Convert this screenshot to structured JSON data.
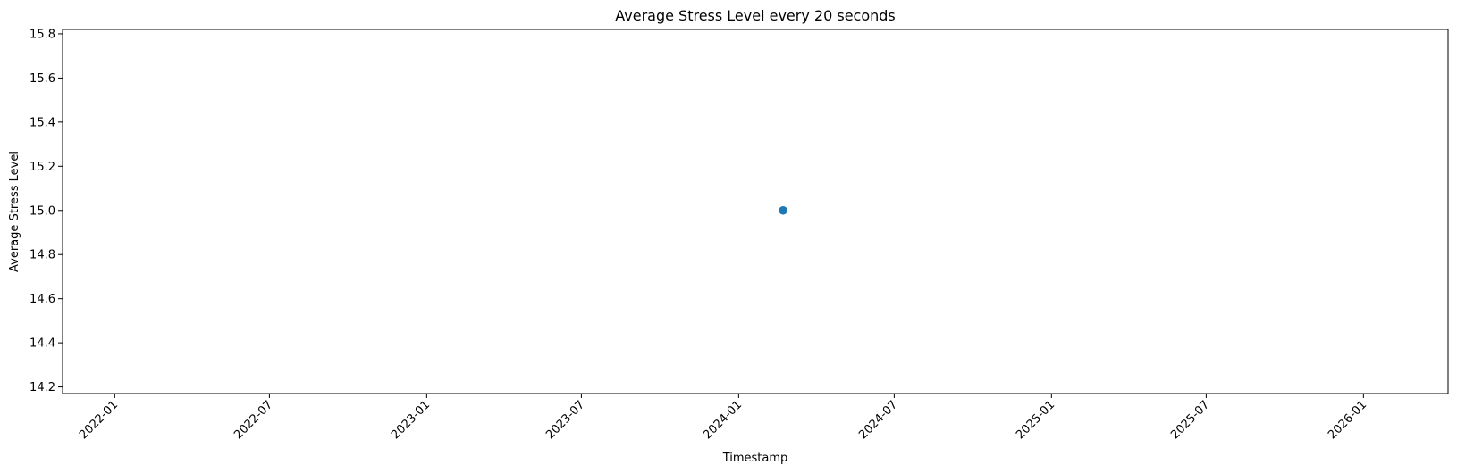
{
  "chart_data": {
    "type": "scatter",
    "title": "Average Stress Level every 20 seconds",
    "xlabel": "Timestamp",
    "ylabel": "Average Stress Level",
    "x_axis_type": "date",
    "xlim": [
      "2021-11-01",
      "2026-04-10"
    ],
    "ylim": [
      14.17,
      15.82
    ],
    "x_ticks": [
      "2022-01",
      "2022-07",
      "2023-01",
      "2023-07",
      "2024-01",
      "2024-07",
      "2025-01",
      "2025-07",
      "2026-01"
    ],
    "y_ticks": [
      "14.2",
      "14.4",
      "14.6",
      "14.8",
      "15.0",
      "15.2",
      "15.4",
      "15.6",
      "15.8"
    ],
    "grid": false,
    "legend": "none",
    "series": [
      {
        "color": "#1f77b4",
        "points": [
          {
            "x": "2024-02-22",
            "y": 15.0
          }
        ]
      }
    ]
  }
}
